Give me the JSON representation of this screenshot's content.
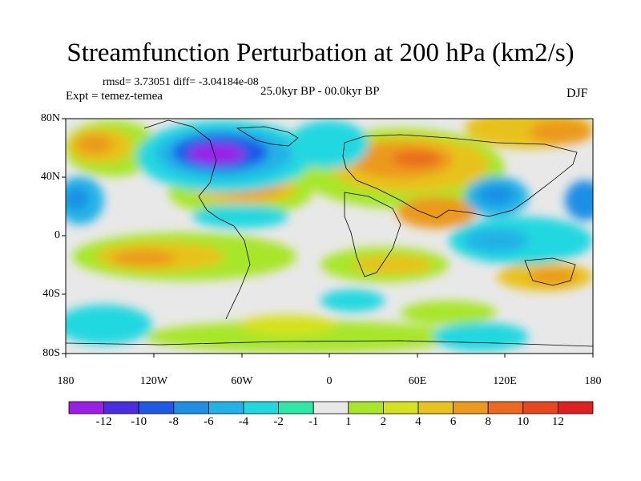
{
  "title": "Streamfunction Perturbation at 200 hPa (km2/s)",
  "stats": "rmsd= 3.73051 diff= -3.04184e-08",
  "experiment": "Expt = temez-temea",
  "period": "25.0kyr BP - 00.0kyr BP",
  "season": "DJF",
  "lat_labels": [
    "80N",
    "40N",
    "0",
    "40S",
    "80S"
  ],
  "lon_labels": [
    "180",
    "120W",
    "60W",
    "0",
    "60E",
    "120E",
    "180"
  ],
  "legend": {
    "labels": [
      "-12",
      "-10",
      "-8",
      "-6",
      "-4",
      "-2",
      "-1",
      "1",
      "2",
      "4",
      "6",
      "8",
      "10",
      "12"
    ],
    "colors": [
      "#9b1fe8",
      "#4a2de0",
      "#1f5ae6",
      "#1f8fe6",
      "#21b2e6",
      "#22d8e0",
      "#2fe8a8",
      "#e8e8e8",
      "#a8e62a",
      "#d6e21f",
      "#e8c21f",
      "#eb9a1f",
      "#eb6a1f",
      "#e8461f",
      "#e01f1f"
    ]
  }
}
